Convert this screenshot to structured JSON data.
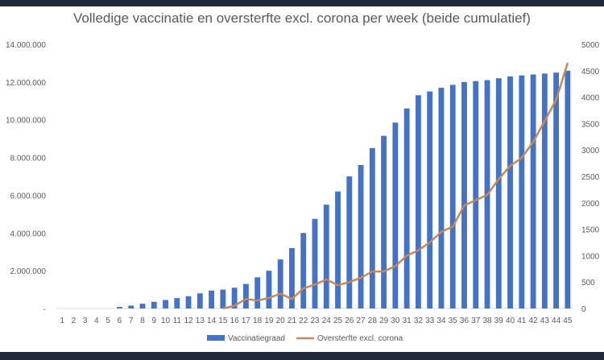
{
  "chart_data": {
    "type": "bar+line",
    "title": "Volledige vaccinatie en oversterfte excl. corona per week (beide cumulatief)",
    "categories": [
      "1",
      "2",
      "3",
      "4",
      "5",
      "6",
      "7",
      "8",
      "9",
      "10",
      "11",
      "12",
      "13",
      "14",
      "15",
      "16",
      "17",
      "18",
      "19",
      "20",
      "21",
      "22",
      "23",
      "24",
      "25",
      "26",
      "27",
      "28",
      "29",
      "30",
      "31",
      "32",
      "33",
      "34",
      "35",
      "36",
      "37",
      "38",
      "39",
      "40",
      "41",
      "42",
      "43",
      "44",
      "45"
    ],
    "series": [
      {
        "name": "Vaccinatiegraad",
        "type": "bar",
        "axis": "left",
        "color": "#4472c4",
        "values": [
          0,
          0,
          0,
          0,
          0,
          80000,
          150000,
          250000,
          350000,
          450000,
          550000,
          650000,
          800000,
          950000,
          1000000,
          1100000,
          1300000,
          1650000,
          2000000,
          2600000,
          3200000,
          4000000,
          4750000,
          5500000,
          6200000,
          7000000,
          7600000,
          8500000,
          9150000,
          9850000,
          10600000,
          11300000,
          11500000,
          11700000,
          11850000,
          12000000,
          12050000,
          12100000,
          12200000,
          12300000,
          12350000,
          12400000,
          12450000,
          12500000,
          12600000
        ]
      },
      {
        "name": "Oversterfte excl. corona",
        "type": "line",
        "axis": "right",
        "color": "#c8875a",
        "values": [
          null,
          null,
          null,
          null,
          null,
          null,
          null,
          null,
          null,
          null,
          null,
          null,
          null,
          null,
          0,
          50,
          180,
          150,
          200,
          280,
          180,
          380,
          450,
          550,
          440,
          500,
          580,
          700,
          700,
          800,
          1000,
          1100,
          1250,
          1450,
          1550,
          1950,
          2050,
          2150,
          2450,
          2700,
          2850,
          3150,
          3550,
          3950,
          4650
        ]
      }
    ],
    "y_left": {
      "min": 0,
      "max": 14000000,
      "step": 2000000,
      "tick_labels": [
        "-",
        "2.000.000",
        "4.000.000",
        "6.000.000",
        "8.000.000",
        "10.000.000",
        "12.000.000",
        "14.000.000"
      ]
    },
    "y_right": {
      "min": 0,
      "max": 5000,
      "step": 500,
      "tick_labels": [
        "0",
        "500",
        "1000",
        "1500",
        "2000",
        "2500",
        "3000",
        "3500",
        "4000",
        "4500",
        "5000"
      ]
    },
    "grid": false,
    "legend": "bottom"
  }
}
